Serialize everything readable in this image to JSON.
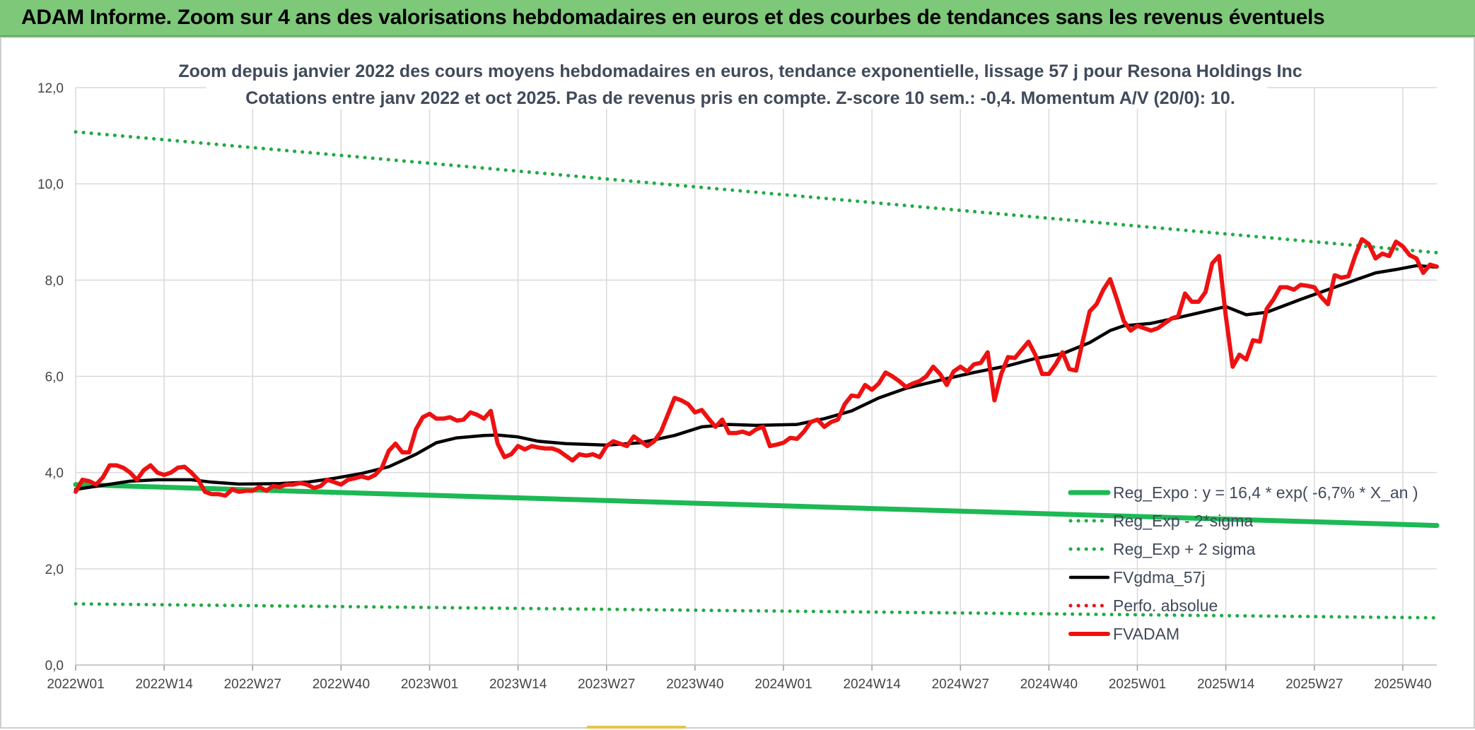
{
  "banner": {
    "title": "ADAM Informe. Zoom sur 4 ans des valorisations hebdomadaires en euros et des courbes de tendances sans les revenus éventuels"
  },
  "colors": {
    "green": "#1db954",
    "green_dotted": "#22aa44",
    "black": "#000000",
    "red": "#ee1111",
    "grid": "#d9d9d9"
  },
  "chart_data": {
    "type": "line",
    "title": "Zoom depuis janvier 2022 des cours moyens hebdomadaires en euros, tendance exponentielle, lissage 57 j pour Resona Holdings Inc",
    "subtitle": "Cotations entre janv 2022 et oct 2025. Pas de revenus pris en compte. Z-score 10 sem.: -0,4. Momentum A/V (20/0): 10.",
    "xlabel": "",
    "ylabel": "",
    "ylim": [
      0,
      12
    ],
    "yticks": [
      "0,0",
      "2,0",
      "4,0",
      "6,0",
      "8,0",
      "10,0",
      "12,0"
    ],
    "x_tick_labels": [
      "2022W01",
      "2022W14",
      "2022W27",
      "2022W40",
      "2023W01",
      "2023W14",
      "2023W27",
      "2023W40",
      "2024W01",
      "2024W14",
      "2024W27",
      "2024W40",
      "2025W01",
      "2025W14",
      "2025W27",
      "2025W40"
    ],
    "x_tick_index": [
      0,
      13,
      26,
      39,
      52,
      65,
      78,
      91,
      104,
      117,
      130,
      143,
      156,
      169,
      182,
      195
    ],
    "x_count": 201,
    "grid": true,
    "legend_position": "bottom-right",
    "series": [
      {
        "name": "Reg_Expo : y = 16,4 * exp( -6,7% *  X_an )",
        "style": "solid-thick",
        "color": "#1db954",
        "points": [
          [
            0,
            3.75
          ],
          [
            200,
            2.9
          ]
        ]
      },
      {
        "name": "Reg_Exp - 2*sigma",
        "style": "dotted",
        "color": "#22aa44",
        "points": [
          [
            0,
            1.27
          ],
          [
            200,
            0.98
          ]
        ]
      },
      {
        "name": "Reg_Exp + 2 sigma",
        "style": "dotted",
        "color": "#22aa44",
        "points": [
          [
            0,
            11.08
          ],
          [
            200,
            8.57
          ]
        ]
      },
      {
        "name": "FVgdma_57j",
        "style": "solid",
        "color": "#000000",
        "points": [
          [
            0,
            3.65
          ],
          [
            8,
            3.82
          ],
          [
            12,
            3.85
          ],
          [
            17,
            3.85
          ],
          [
            20,
            3.8
          ],
          [
            24,
            3.76
          ],
          [
            30,
            3.77
          ],
          [
            34,
            3.8
          ],
          [
            38,
            3.88
          ],
          [
            42,
            3.98
          ],
          [
            46,
            4.12
          ],
          [
            50,
            4.38
          ],
          [
            53,
            4.62
          ],
          [
            56,
            4.72
          ],
          [
            60,
            4.77
          ],
          [
            62,
            4.78
          ],
          [
            65,
            4.74
          ],
          [
            68,
            4.65
          ],
          [
            72,
            4.6
          ],
          [
            78,
            4.57
          ],
          [
            83,
            4.62
          ],
          [
            88,
            4.77
          ],
          [
            92,
            4.95
          ],
          [
            96,
            5.0
          ],
          [
            100,
            4.98
          ],
          [
            106,
            5.0
          ],
          [
            110,
            5.12
          ],
          [
            114,
            5.28
          ],
          [
            118,
            5.55
          ],
          [
            122,
            5.75
          ],
          [
            127,
            5.92
          ],
          [
            132,
            6.08
          ],
          [
            137,
            6.22
          ],
          [
            141,
            6.37
          ],
          [
            145,
            6.47
          ],
          [
            149,
            6.7
          ],
          [
            152,
            6.95
          ],
          [
            154,
            7.05
          ],
          [
            158,
            7.1
          ],
          [
            162,
            7.22
          ],
          [
            166,
            7.35
          ],
          [
            169,
            7.45
          ],
          [
            172,
            7.28
          ],
          [
            175,
            7.33
          ],
          [
            180,
            7.6
          ],
          [
            184,
            7.8
          ],
          [
            188,
            8.0
          ],
          [
            191,
            8.15
          ],
          [
            194,
            8.22
          ],
          [
            197,
            8.3
          ],
          [
            200,
            8.27
          ]
        ]
      },
      {
        "name": "Perfo. absolue",
        "style": "dotted",
        "color": "#ee1111",
        "points": []
      },
      {
        "name": "FVADAM",
        "style": "solid-thick",
        "color": "#ee1111",
        "points": [
          [
            0,
            3.6
          ],
          [
            1,
            3.85
          ],
          [
            2,
            3.82
          ],
          [
            3,
            3.75
          ],
          [
            4,
            3.9
          ],
          [
            5,
            4.15
          ],
          [
            6,
            4.15
          ],
          [
            7,
            4.1
          ],
          [
            8,
            4.0
          ],
          [
            9,
            3.85
          ],
          [
            10,
            4.05
          ],
          [
            11,
            4.15
          ],
          [
            12,
            4.0
          ],
          [
            13,
            3.95
          ],
          [
            14,
            4.0
          ],
          [
            15,
            4.1
          ],
          [
            16,
            4.12
          ],
          [
            17,
            4.0
          ],
          [
            18,
            3.85
          ],
          [
            19,
            3.6
          ],
          [
            20,
            3.55
          ],
          [
            21,
            3.55
          ],
          [
            22,
            3.52
          ],
          [
            23,
            3.65
          ],
          [
            24,
            3.6
          ],
          [
            25,
            3.62
          ],
          [
            26,
            3.62
          ],
          [
            27,
            3.7
          ],
          [
            28,
            3.62
          ],
          [
            29,
            3.72
          ],
          [
            30,
            3.7
          ],
          [
            31,
            3.75
          ],
          [
            32,
            3.75
          ],
          [
            33,
            3.78
          ],
          [
            34,
            3.75
          ],
          [
            35,
            3.68
          ],
          [
            36,
            3.72
          ],
          [
            37,
            3.85
          ],
          [
            38,
            3.8
          ],
          [
            39,
            3.75
          ],
          [
            40,
            3.85
          ],
          [
            41,
            3.88
          ],
          [
            42,
            3.92
          ],
          [
            43,
            3.88
          ],
          [
            44,
            3.95
          ],
          [
            45,
            4.1
          ],
          [
            46,
            4.45
          ],
          [
            47,
            4.6
          ],
          [
            48,
            4.42
          ],
          [
            49,
            4.42
          ],
          [
            50,
            4.9
          ],
          [
            51,
            5.15
          ],
          [
            52,
            5.22
          ],
          [
            53,
            5.12
          ],
          [
            54,
            5.12
          ],
          [
            55,
            5.15
          ],
          [
            56,
            5.08
          ],
          [
            57,
            5.1
          ],
          [
            58,
            5.25
          ],
          [
            59,
            5.2
          ],
          [
            60,
            5.12
          ],
          [
            61,
            5.28
          ],
          [
            62,
            4.6
          ],
          [
            63,
            4.32
          ],
          [
            64,
            4.38
          ],
          [
            65,
            4.55
          ],
          [
            66,
            4.48
          ],
          [
            67,
            4.55
          ],
          [
            68,
            4.52
          ],
          [
            69,
            4.5
          ],
          [
            70,
            4.5
          ],
          [
            71,
            4.45
          ],
          [
            72,
            4.35
          ],
          [
            73,
            4.25
          ],
          [
            74,
            4.38
          ],
          [
            75,
            4.35
          ],
          [
            76,
            4.38
          ],
          [
            77,
            4.32
          ],
          [
            78,
            4.55
          ],
          [
            79,
            4.65
          ],
          [
            80,
            4.6
          ],
          [
            81,
            4.55
          ],
          [
            82,
            4.75
          ],
          [
            83,
            4.65
          ],
          [
            84,
            4.55
          ],
          [
            85,
            4.65
          ],
          [
            86,
            4.85
          ],
          [
            87,
            5.2
          ],
          [
            88,
            5.55
          ],
          [
            89,
            5.5
          ],
          [
            90,
            5.42
          ],
          [
            91,
            5.25
          ],
          [
            92,
            5.3
          ],
          [
            93,
            5.12
          ],
          [
            94,
            4.95
          ],
          [
            95,
            5.1
          ],
          [
            96,
            4.82
          ],
          [
            97,
            4.82
          ],
          [
            98,
            4.85
          ],
          [
            99,
            4.8
          ],
          [
            100,
            4.9
          ],
          [
            101,
            4.95
          ],
          [
            102,
            4.55
          ],
          [
            103,
            4.58
          ],
          [
            104,
            4.62
          ],
          [
            105,
            4.72
          ],
          [
            106,
            4.7
          ],
          [
            107,
            4.85
          ],
          [
            108,
            5.05
          ],
          [
            109,
            5.1
          ],
          [
            110,
            4.95
          ],
          [
            111,
            5.05
          ],
          [
            112,
            5.1
          ],
          [
            113,
            5.42
          ],
          [
            114,
            5.6
          ],
          [
            115,
            5.58
          ],
          [
            116,
            5.82
          ],
          [
            117,
            5.72
          ],
          [
            118,
            5.85
          ],
          [
            119,
            6.08
          ],
          [
            120,
            6.0
          ],
          [
            121,
            5.9
          ],
          [
            122,
            5.78
          ],
          [
            123,
            5.85
          ],
          [
            124,
            5.9
          ],
          [
            125,
            6.0
          ],
          [
            126,
            6.2
          ],
          [
            127,
            6.05
          ],
          [
            128,
            5.82
          ],
          [
            129,
            6.1
          ],
          [
            130,
            6.2
          ],
          [
            131,
            6.1
          ],
          [
            132,
            6.25
          ],
          [
            133,
            6.28
          ],
          [
            134,
            6.5
          ],
          [
            135,
            5.5
          ],
          [
            136,
            6.05
          ],
          [
            137,
            6.4
          ],
          [
            138,
            6.38
          ],
          [
            139,
            6.55
          ],
          [
            140,
            6.72
          ],
          [
            141,
            6.45
          ],
          [
            142,
            6.05
          ],
          [
            143,
            6.05
          ],
          [
            144,
            6.25
          ],
          [
            145,
            6.5
          ],
          [
            146,
            6.15
          ],
          [
            147,
            6.12
          ],
          [
            148,
            6.75
          ],
          [
            149,
            7.35
          ],
          [
            150,
            7.5
          ],
          [
            151,
            7.8
          ],
          [
            152,
            8.02
          ],
          [
            153,
            7.6
          ],
          [
            154,
            7.15
          ],
          [
            155,
            6.95
          ],
          [
            156,
            7.05
          ],
          [
            157,
            7.0
          ],
          [
            158,
            6.95
          ],
          [
            159,
            7.0
          ],
          [
            160,
            7.1
          ],
          [
            161,
            7.2
          ],
          [
            162,
            7.25
          ],
          [
            163,
            7.72
          ],
          [
            164,
            7.55
          ],
          [
            165,
            7.55
          ],
          [
            166,
            7.75
          ],
          [
            167,
            8.35
          ],
          [
            168,
            8.5
          ],
          [
            169,
            7.25
          ],
          [
            170,
            6.2
          ],
          [
            171,
            6.45
          ],
          [
            172,
            6.35
          ],
          [
            173,
            6.75
          ],
          [
            174,
            6.72
          ],
          [
            175,
            7.4
          ],
          [
            176,
            7.6
          ],
          [
            177,
            7.85
          ],
          [
            178,
            7.85
          ],
          [
            179,
            7.8
          ],
          [
            180,
            7.9
          ],
          [
            181,
            7.88
          ],
          [
            182,
            7.85
          ],
          [
            183,
            7.65
          ],
          [
            184,
            7.5
          ],
          [
            185,
            8.1
          ],
          [
            186,
            8.05
          ],
          [
            187,
            8.08
          ],
          [
            188,
            8.5
          ],
          [
            189,
            8.85
          ],
          [
            190,
            8.75
          ],
          [
            191,
            8.45
          ],
          [
            192,
            8.55
          ],
          [
            193,
            8.5
          ],
          [
            194,
            8.8
          ],
          [
            195,
            8.7
          ],
          [
            196,
            8.52
          ],
          [
            197,
            8.45
          ],
          [
            198,
            8.15
          ],
          [
            199,
            8.32
          ],
          [
            200,
            8.28
          ]
        ]
      }
    ]
  }
}
